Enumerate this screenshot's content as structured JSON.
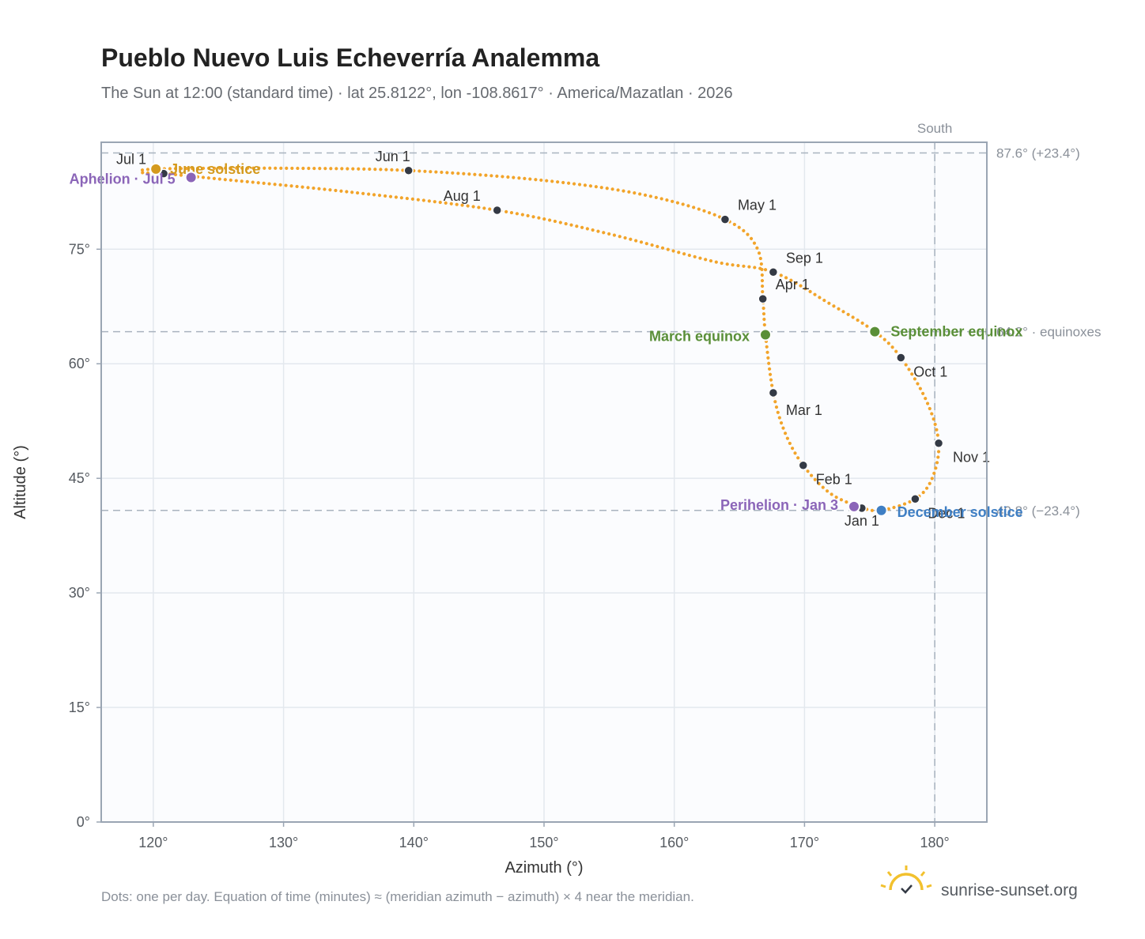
{
  "chart_data": {
    "type": "scatter",
    "title": "Pueblo Nuevo Luis Echeverría Analemma",
    "subtitle": "The Sun at 12:00 (standard time) · lat 25.8122°, lon -108.8617° · America/Mazatlan · 2026",
    "xlabel": "Azimuth (°)",
    "ylabel": "Altitude (°)",
    "xlim": [
      116,
      184
    ],
    "ylim": [
      0,
      89
    ],
    "x_ticks": [
      120,
      130,
      140,
      150,
      160,
      170,
      180
    ],
    "x_tick_labels": [
      "120°",
      "130°",
      "140°",
      "150°",
      "160°",
      "170°",
      "180°"
    ],
    "y_ticks": [
      0,
      15,
      30,
      45,
      60,
      75
    ],
    "y_tick_labels": [
      "0°",
      "15°",
      "30°",
      "45°",
      "60°",
      "75°"
    ],
    "grid": true,
    "colors": {
      "curve": "#f2a42a",
      "month_marker": "#343a45",
      "solstice_june": "#d49a1e",
      "solstice_december": "#3f7fc4",
      "equinox": "#5a8f38",
      "apsis": "#8b65b8",
      "reference_line": "#a9b3bf",
      "plot_bg": "#fbfcfe",
      "frame": "#9aa5b3"
    },
    "south": {
      "azimuth": 180,
      "label": "South"
    },
    "reference_lines": [
      {
        "altitude": 87.6,
        "label": "87.6° (+23.4°)"
      },
      {
        "altitude": 64.2,
        "label": "64.2° · equinoxes"
      },
      {
        "altitude": 40.8,
        "label": "40.8° (−23.4°)"
      }
    ],
    "month_markers": [
      {
        "label": "Jan 1",
        "az": 174.4,
        "alt": 41.1
      },
      {
        "label": "Feb 1",
        "az": 169.9,
        "alt": 46.7
      },
      {
        "label": "Mar 1",
        "az": 167.6,
        "alt": 56.2
      },
      {
        "label": "Apr 1",
        "az": 166.8,
        "alt": 68.5
      },
      {
        "label": "May 1",
        "az": 163.9,
        "alt": 78.9
      },
      {
        "label": "Jun 1",
        "az": 139.6,
        "alt": 85.3
      },
      {
        "label": "Jul 1",
        "az": 120.8,
        "alt": 84.9
      },
      {
        "label": "Aug 1",
        "az": 146.4,
        "alt": 80.1
      },
      {
        "label": "Sep 1",
        "az": 167.6,
        "alt": 72.0
      },
      {
        "label": "Oct 1",
        "az": 177.4,
        "alt": 60.8
      },
      {
        "label": "Nov 1",
        "az": 180.3,
        "alt": 49.6
      },
      {
        "label": "Dec 1",
        "az": 178.5,
        "alt": 42.3
      }
    ],
    "events": [
      {
        "label": "June solstice",
        "az": 120.2,
        "alt": 85.5,
        "kind": "solstice_june"
      },
      {
        "label": "December solstice",
        "az": 175.9,
        "alt": 40.8,
        "kind": "solstice_december"
      },
      {
        "label": "March equinox",
        "az": 167.0,
        "alt": 63.8,
        "kind": "equinox"
      },
      {
        "label": "September equinox",
        "az": 175.4,
        "alt": 64.2,
        "kind": "equinox"
      },
      {
        "label": "Perihelion · Jan 3",
        "az": 173.8,
        "alt": 41.3,
        "kind": "apsis"
      },
      {
        "label": "Aphelion · Jul 5",
        "az": 122.9,
        "alt": 84.4,
        "kind": "apsis"
      }
    ],
    "curve_knots": [
      [
        174.4,
        41.1
      ],
      [
        172.0,
        43.0
      ],
      [
        169.9,
        46.7
      ],
      [
        168.5,
        51.0
      ],
      [
        167.6,
        56.2
      ],
      [
        167.0,
        63.8
      ],
      [
        166.8,
        68.5
      ],
      [
        166.4,
        75.0
      ],
      [
        163.9,
        78.9
      ],
      [
        158.0,
        82.0
      ],
      [
        150.0,
        84.0
      ],
      [
        139.6,
        85.3
      ],
      [
        130.0,
        85.6
      ],
      [
        120.2,
        85.5
      ],
      [
        119.2,
        85.0
      ],
      [
        120.8,
        84.9
      ],
      [
        125.0,
        84.2
      ],
      [
        135.0,
        82.5
      ],
      [
        146.4,
        80.1
      ],
      [
        155.0,
        77.0
      ],
      [
        163.0,
        73.4
      ],
      [
        167.6,
        72.0
      ],
      [
        172.0,
        67.8
      ],
      [
        175.4,
        64.2
      ],
      [
        177.4,
        60.8
      ],
      [
        179.4,
        55.0
      ],
      [
        180.3,
        49.6
      ],
      [
        179.8,
        45.0
      ],
      [
        178.5,
        42.3
      ],
      [
        175.9,
        40.8
      ],
      [
        174.4,
        41.1
      ]
    ],
    "footnote": "Dots: one per day. Equation of time (minutes) ≈ (meridian azimuth − azimuth) × 4 near the meridian."
  },
  "brand": {
    "name": "sunrise-sunset.org",
    "logo_icon": "sun-logo-icon"
  }
}
